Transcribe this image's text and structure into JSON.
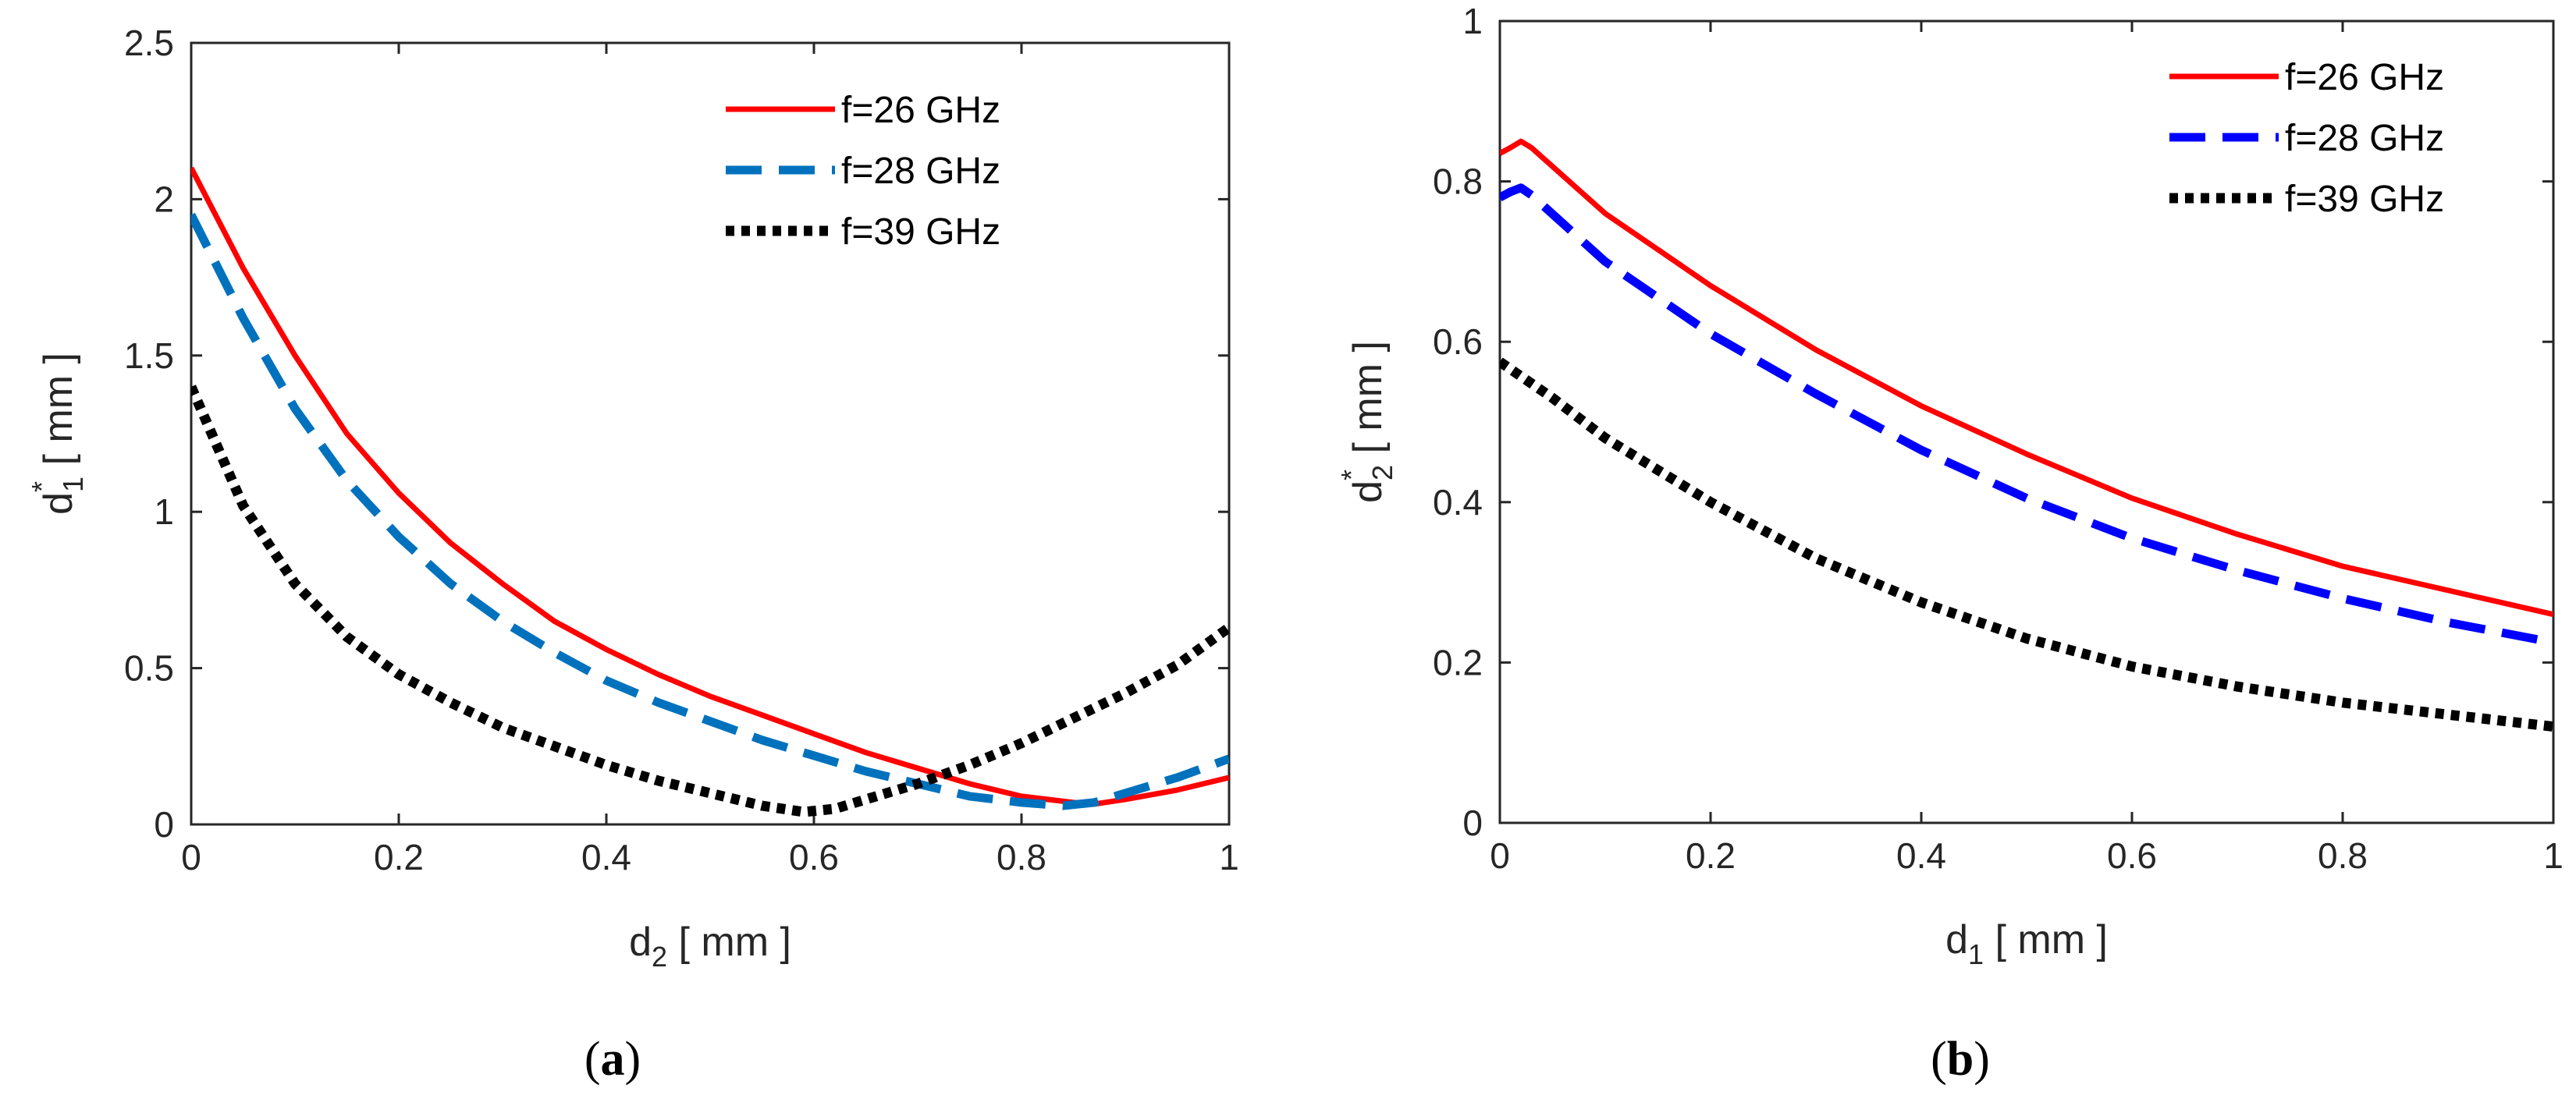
{
  "chart_data": [
    {
      "type": "line",
      "panel_caption": "a",
      "xlabel": {
        "base": "d",
        "sub": "2",
        "unit": " [ mm ]"
      },
      "ylabel": {
        "base": "d",
        "sup": "*",
        "sub": "1",
        "unit": "  [ mm ]"
      },
      "xlim": [
        0,
        1
      ],
      "ylim": [
        0,
        2.5
      ],
      "xticks": [
        "0",
        "0.2",
        "0.4",
        "0.6",
        "0.8",
        "1"
      ],
      "yticks": [
        "0",
        "0.5",
        "1",
        "1.5",
        "2",
        "2.5"
      ],
      "legend_position": "top-right",
      "series": [
        {
          "name": "f=26 GHz",
          "color": "#ff0000",
          "style": "solid",
          "x": [
            0,
            0.05,
            0.1,
            0.15,
            0.2,
            0.25,
            0.3,
            0.35,
            0.4,
            0.45,
            0.5,
            0.55,
            0.6,
            0.65,
            0.7,
            0.75,
            0.8,
            0.85,
            0.87,
            0.9,
            0.95,
            1.0
          ],
          "y": [
            2.1,
            1.78,
            1.5,
            1.25,
            1.06,
            0.9,
            0.77,
            0.65,
            0.56,
            0.48,
            0.41,
            0.35,
            0.29,
            0.23,
            0.18,
            0.13,
            0.09,
            0.07,
            0.065,
            0.08,
            0.11,
            0.15
          ]
        },
        {
          "name": "f=28 GHz",
          "color": "#0072bd",
          "style": "dashed",
          "x": [
            0,
            0.05,
            0.1,
            0.15,
            0.2,
            0.25,
            0.3,
            0.35,
            0.4,
            0.45,
            0.5,
            0.55,
            0.6,
            0.65,
            0.7,
            0.75,
            0.8,
            0.84,
            0.87,
            0.9,
            0.95,
            1.0
          ],
          "y": [
            1.95,
            1.62,
            1.33,
            1.1,
            0.92,
            0.77,
            0.65,
            0.55,
            0.46,
            0.39,
            0.33,
            0.27,
            0.22,
            0.17,
            0.13,
            0.09,
            0.07,
            0.06,
            0.07,
            0.1,
            0.15,
            0.21
          ]
        },
        {
          "name": "f=39 GHz",
          "color": "#000000",
          "style": "dotted",
          "x": [
            0,
            0.05,
            0.1,
            0.15,
            0.2,
            0.25,
            0.3,
            0.35,
            0.4,
            0.45,
            0.5,
            0.55,
            0.59,
            0.62,
            0.65,
            0.7,
            0.75,
            0.8,
            0.85,
            0.9,
            0.95,
            1.0
          ],
          "y": [
            1.4,
            1.02,
            0.77,
            0.6,
            0.48,
            0.39,
            0.31,
            0.25,
            0.19,
            0.14,
            0.1,
            0.06,
            0.04,
            0.05,
            0.08,
            0.13,
            0.19,
            0.26,
            0.34,
            0.42,
            0.51,
            0.63
          ]
        }
      ]
    },
    {
      "type": "line",
      "panel_caption": "b",
      "xlabel": {
        "base": "d",
        "sub": "1",
        "unit": " [ mm ]"
      },
      "ylabel": {
        "base": "d",
        "sup": "*",
        "sub": "2",
        "unit": "  [ mm ]"
      },
      "xlim": [
        0,
        1
      ],
      "ylim": [
        0,
        1
      ],
      "xticks": [
        "0",
        "0.2",
        "0.4",
        "0.6",
        "0.8",
        "1"
      ],
      "yticks": [
        "0",
        "0.2",
        "0.4",
        "0.6",
        "0.8",
        "1"
      ],
      "legend_position": "top-right",
      "series": [
        {
          "name": "f=26 GHz",
          "color": "#ff0000",
          "style": "solid",
          "x": [
            0,
            0.01,
            0.02,
            0.03,
            0.1,
            0.2,
            0.3,
            0.4,
            0.5,
            0.6,
            0.7,
            0.8,
            0.9,
            1.0
          ],
          "y": [
            0.835,
            0.842,
            0.85,
            0.842,
            0.76,
            0.67,
            0.59,
            0.52,
            0.46,
            0.405,
            0.36,
            0.32,
            0.29,
            0.26
          ]
        },
        {
          "name": "f=28 GHz",
          "color": "#0000ff",
          "style": "dashed",
          "x": [
            0,
            0.01,
            0.02,
            0.03,
            0.1,
            0.2,
            0.3,
            0.4,
            0.5,
            0.6,
            0.7,
            0.8,
            0.9,
            1.0
          ],
          "y": [
            0.78,
            0.787,
            0.792,
            0.783,
            0.7,
            0.61,
            0.535,
            0.465,
            0.405,
            0.355,
            0.315,
            0.28,
            0.25,
            0.225
          ]
        },
        {
          "name": "f=39 GHz",
          "color": "#000000",
          "style": "dotted",
          "x": [
            0,
            0.05,
            0.1,
            0.2,
            0.3,
            0.4,
            0.5,
            0.6,
            0.7,
            0.8,
            0.9,
            1.0
          ],
          "y": [
            0.575,
            0.53,
            0.48,
            0.4,
            0.33,
            0.275,
            0.23,
            0.195,
            0.17,
            0.15,
            0.135,
            0.12
          ]
        }
      ]
    }
  ]
}
